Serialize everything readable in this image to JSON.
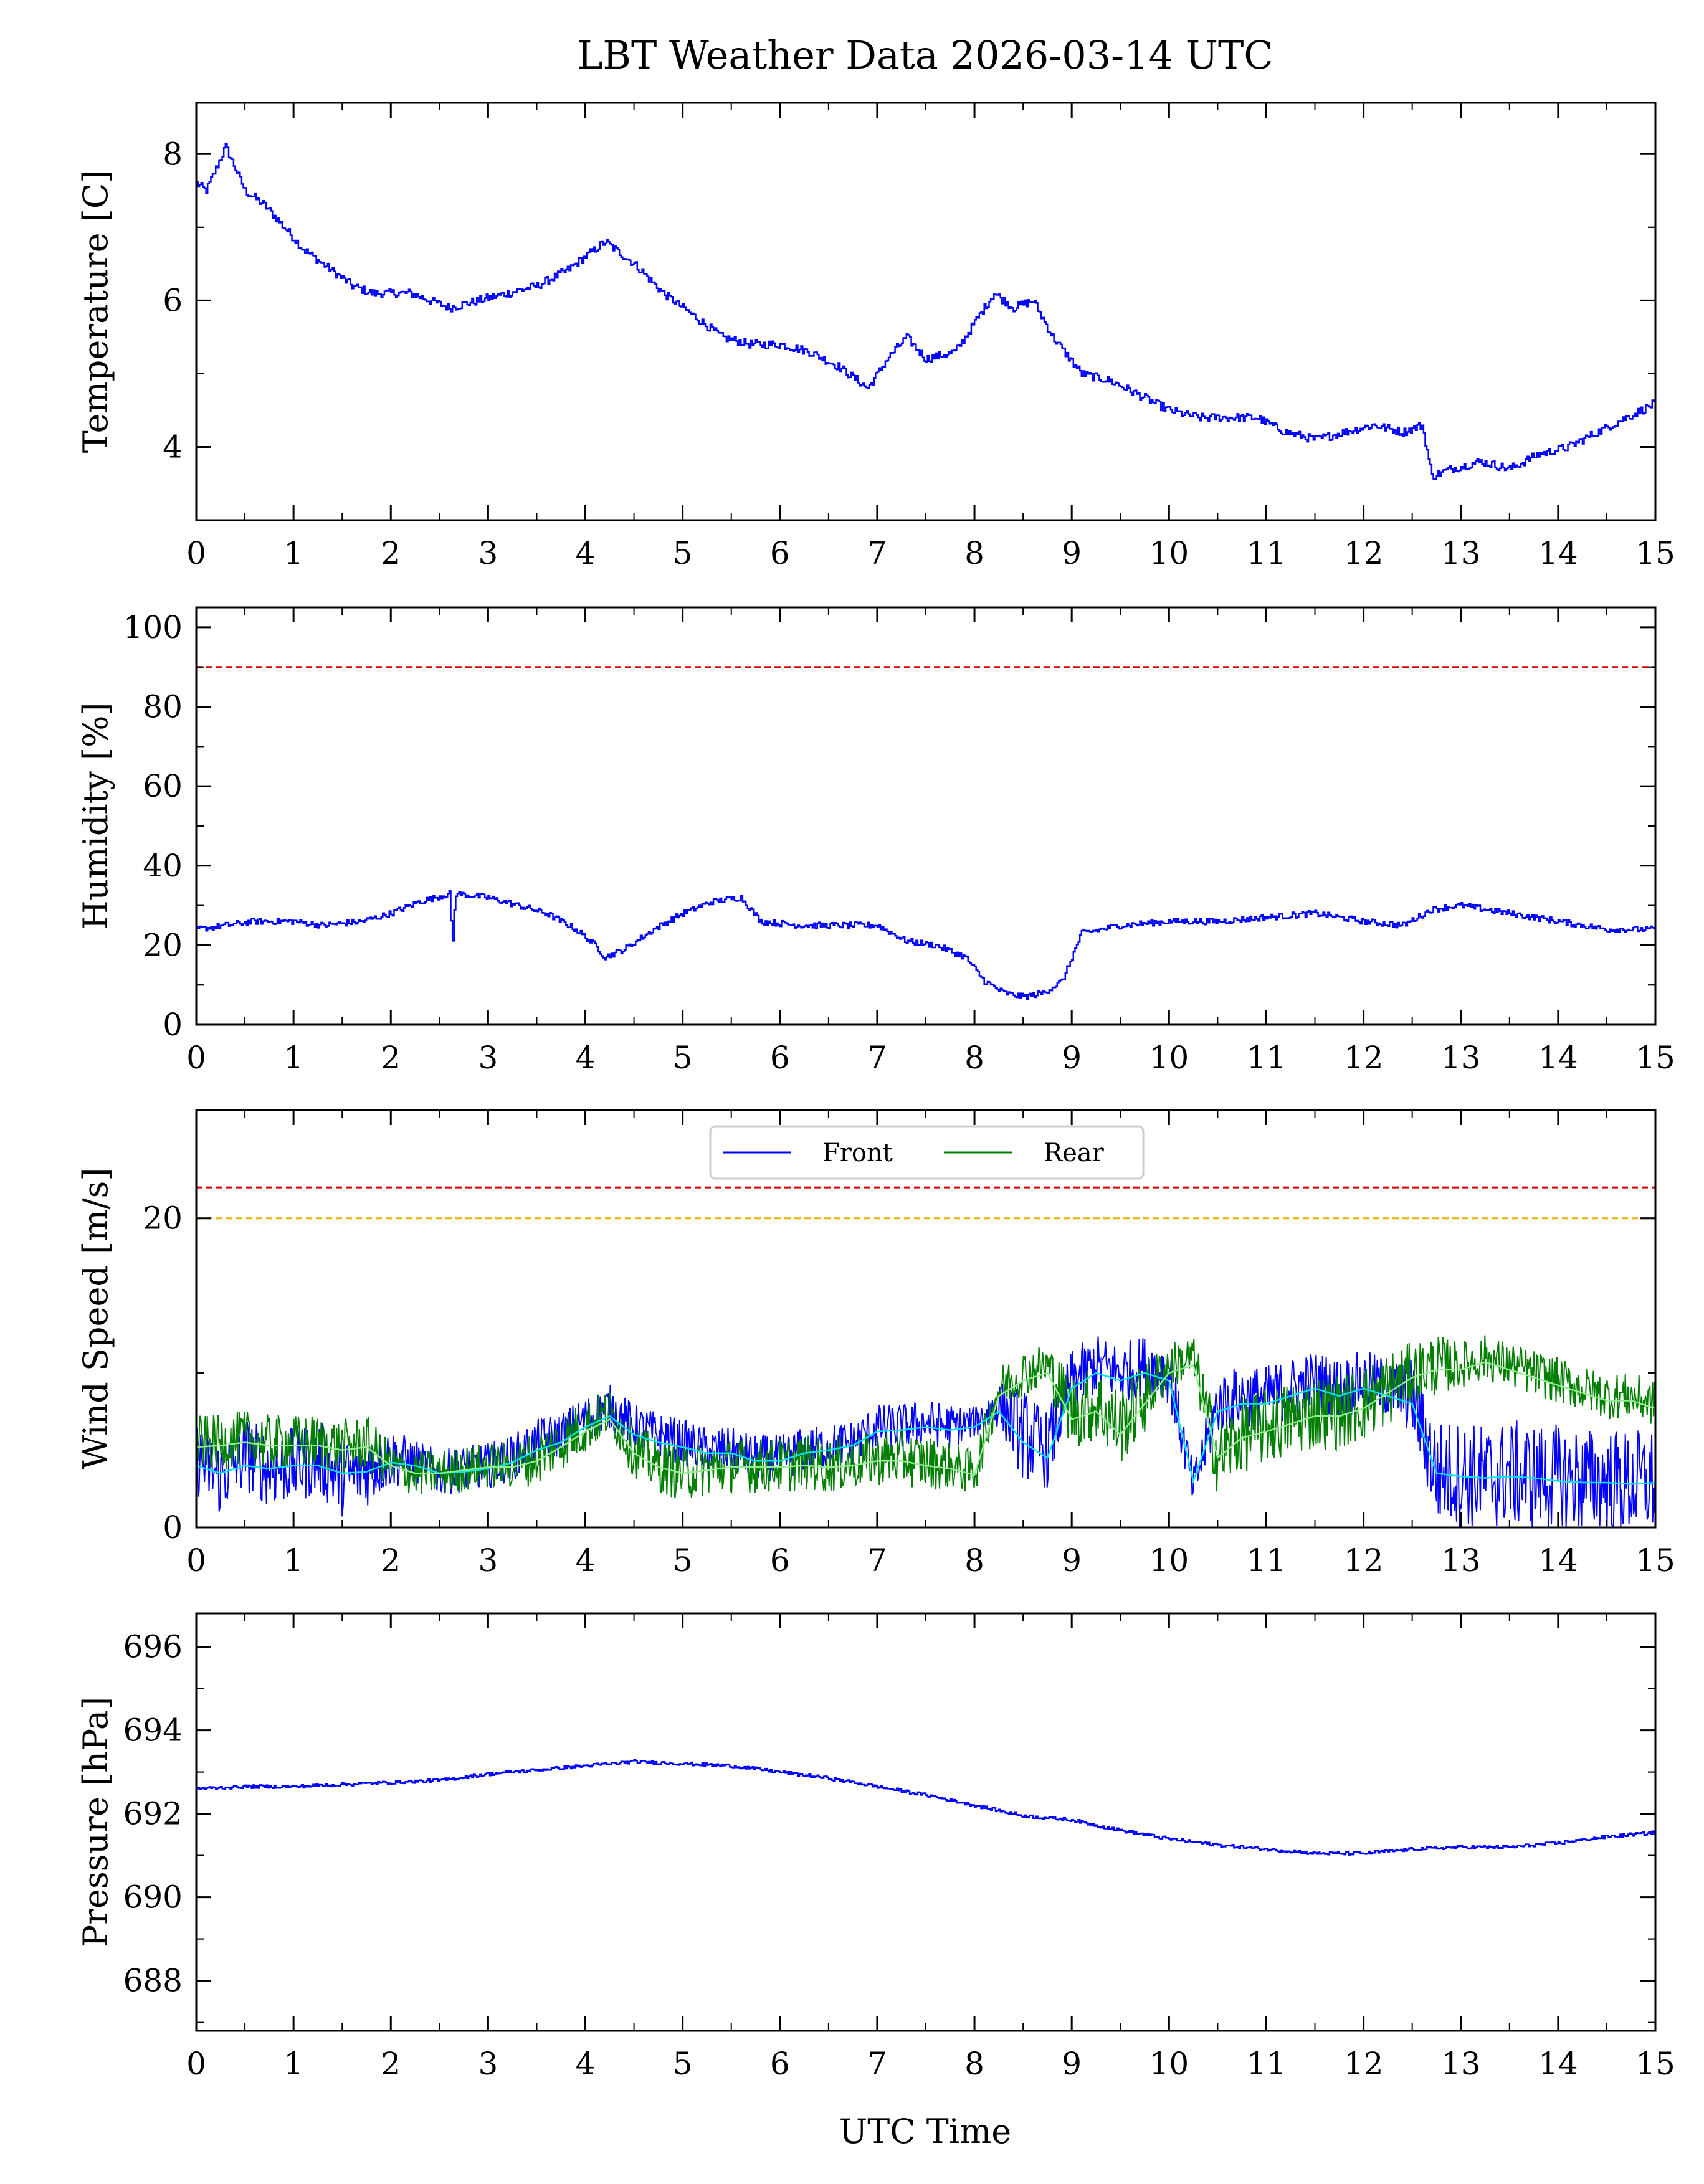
{
  "figure": {
    "title": "LBT Weather Data 2026-03-14 UTC",
    "xlabel": "UTC Time"
  },
  "chart_data": [
    {
      "type": "line",
      "id": "temperature",
      "ylabel": "Temperature [C]",
      "xlim": [
        0,
        15
      ],
      "ylim": [
        3.0,
        8.7
      ],
      "xticks": [
        0,
        1,
        2,
        3,
        4,
        5,
        6,
        7,
        8,
        9,
        10,
        11,
        12,
        13,
        14,
        15
      ],
      "yticks": [
        4,
        6,
        8
      ],
      "series": [
        {
          "name": "Temperature",
          "color": "#0000ff",
          "x": [
            0,
            0.1,
            0.2,
            0.3,
            0.4,
            0.5,
            0.7,
            0.9,
            1.1,
            1.4,
            1.6,
            1.8,
            2.2,
            2.6,
            2.9,
            3.2,
            3.5,
            3.8,
            4.0,
            4.2,
            4.5,
            4.8,
            5.1,
            5.4,
            5.7,
            6.0,
            6.3,
            6.6,
            6.9,
            7.1,
            7.3,
            7.5,
            7.8,
            8.0,
            8.2,
            8.4,
            8.6,
            8.8,
            9.1,
            9.4,
            9.7,
            10.0,
            10.3,
            10.6,
            10.9,
            11.2,
            11.5,
            11.8,
            12.1,
            12.4,
            12.6,
            12.7,
            12.9,
            13.2,
            13.5,
            13.8,
            14.1,
            14.4,
            14.7,
            15.0
          ],
          "y": [
            7.6,
            7.5,
            7.8,
            8.1,
            7.8,
            7.5,
            7.3,
            7.0,
            6.7,
            6.4,
            6.2,
            6.1,
            6.1,
            5.9,
            6.0,
            6.1,
            6.2,
            6.4,
            6.6,
            6.8,
            6.5,
            6.1,
            5.8,
            5.5,
            5.4,
            5.4,
            5.3,
            5.1,
            4.8,
            5.2,
            5.5,
            5.2,
            5.3,
            5.7,
            6.1,
            5.9,
            6.0,
            5.5,
            5.0,
            4.9,
            4.7,
            4.5,
            4.4,
            4.4,
            4.4,
            4.2,
            4.1,
            4.2,
            4.3,
            4.2,
            4.3,
            3.6,
            3.7,
            3.8,
            3.7,
            3.9,
            4.0,
            4.2,
            4.4,
            4.6
          ]
        }
      ]
    },
    {
      "type": "line",
      "id": "humidity",
      "ylabel": "Humidity [%]",
      "xlim": [
        0,
        15
      ],
      "ylim": [
        0,
        105
      ],
      "xticks": [
        0,
        1,
        2,
        3,
        4,
        5,
        6,
        7,
        8,
        9,
        10,
        11,
        12,
        13,
        14,
        15
      ],
      "yticks": [
        0,
        20,
        40,
        60,
        80,
        100
      ],
      "thresholds": [
        {
          "value": 90,
          "color": "#dd0000"
        }
      ],
      "series": [
        {
          "name": "Humidity",
          "color": "#0000ff",
          "x": [
            0,
            0.3,
            0.6,
            1.0,
            1.3,
            1.7,
            2.0,
            2.3,
            2.6,
            2.63,
            2.66,
            3.0,
            3.3,
            3.6,
            3.9,
            4.1,
            4.2,
            4.4,
            4.7,
            5.0,
            5.3,
            5.6,
            5.8,
            6.2,
            6.6,
            7.0,
            7.3,
            7.6,
            7.9,
            8.1,
            8.3,
            8.5,
            8.7,
            8.9,
            9.1,
            9.5,
            10.0,
            10.5,
            11.0,
            11.5,
            12.0,
            12.4,
            12.7,
            13.0,
            13.5,
            14.0,
            14.5,
            15.0
          ],
          "y": [
            24,
            25,
            26,
            26,
            25,
            26,
            28,
            31,
            33,
            20,
            33,
            32,
            30,
            28,
            24,
            20,
            17,
            19,
            24,
            28,
            31,
            32,
            26,
            25,
            25,
            25,
            21,
            20,
            17,
            11,
            8,
            7,
            8,
            11,
            23,
            25,
            26,
            26,
            27,
            28,
            26,
            25,
            29,
            30,
            28,
            26,
            24,
            24
          ]
        }
      ]
    },
    {
      "type": "line",
      "id": "wind",
      "ylabel": "Wind Speed [m/s]",
      "xlim": [
        0,
        15
      ],
      "ylim": [
        0,
        27
      ],
      "xticks": [
        0,
        1,
        2,
        3,
        4,
        5,
        6,
        7,
        8,
        9,
        10,
        11,
        12,
        13,
        14,
        15
      ],
      "yticks": [
        0,
        20
      ],
      "thresholds": [
        {
          "value": 22,
          "color": "#dd0000"
        },
        {
          "value": 20,
          "color": "#e8b000"
        }
      ],
      "legend": {
        "entries": [
          "Front",
          "Rear"
        ],
        "placement": "top-center"
      },
      "x": [
        0,
        0.25,
        0.5,
        0.75,
        1.0,
        1.25,
        1.5,
        1.75,
        2.0,
        2.25,
        2.5,
        2.75,
        3.0,
        3.25,
        3.5,
        3.75,
        4.0,
        4.25,
        4.5,
        4.75,
        5.0,
        5.25,
        5.5,
        5.75,
        6.0,
        6.25,
        6.5,
        6.75,
        7.0,
        7.25,
        7.5,
        7.75,
        8.0,
        8.25,
        8.5,
        8.75,
        9.0,
        9.25,
        9.5,
        9.75,
        10.0,
        10.25,
        10.5,
        10.75,
        11.0,
        11.25,
        11.5,
        11.75,
        12.0,
        12.25,
        12.5,
        12.75,
        13.0,
        13.25,
        13.5,
        13.75,
        14.0,
        14.25,
        14.5,
        14.75,
        15.0
      ],
      "series": [
        {
          "name": "Front",
          "color": "#0000ff",
          "values": [
            4.5,
            3.2,
            4.8,
            3.8,
            4.0,
            4.5,
            3.2,
            3.8,
            4.5,
            4.2,
            3.5,
            3.8,
            4.0,
            4.5,
            5.5,
            6.0,
            7.0,
            7.8,
            6.5,
            6.0,
            5.5,
            5.0,
            5.0,
            4.5,
            4.5,
            5.0,
            5.2,
            5.5,
            6.5,
            6.5,
            6.8,
            6.5,
            6.8,
            8.0,
            6.0,
            5.0,
            9.5,
            10.5,
            10.0,
            10.5,
            10.0,
            2.5,
            8.0,
            8.5,
            8.5,
            9.0,
            9.5,
            9.0,
            9.5,
            9.0,
            8.5,
            3.5,
            3.5,
            3.2,
            3.5,
            3.3,
            3.2,
            3.0,
            3.0,
            2.8,
            3.0
          ],
          "spread": [
            2.5,
            2.5,
            2.5,
            2.5,
            2.5,
            2.5,
            2.5,
            2.5,
            2.0,
            1.5,
            1.5,
            1.5,
            1.5,
            1.5,
            1.5,
            1.5,
            1.5,
            1.5,
            1.5,
            1.5,
            1.5,
            1.5,
            1.5,
            1.5,
            1.5,
            1.5,
            1.5,
            1.5,
            1.5,
            1.5,
            1.5,
            1.5,
            1.0,
            1.5,
            3.0,
            2.5,
            2.0,
            2.0,
            2.0,
            2.0,
            2.0,
            1.5,
            2.0,
            2.0,
            2.0,
            2.0,
            2.0,
            2.0,
            2.0,
            2.0,
            2.5,
            3.5,
            3.5,
            3.5,
            3.5,
            3.5,
            3.5,
            3.5,
            3.5,
            3.5,
            3.5
          ]
        },
        {
          "name": "Rear",
          "color": "#007f00",
          "values": [
            5.5,
            5.5,
            5.8,
            5.5,
            5.5,
            5.5,
            5.2,
            5.5,
            4.0,
            3.5,
            3.5,
            3.8,
            4.0,
            4.0,
            4.5,
            5.5,
            6.5,
            7.5,
            5.0,
            4.0,
            3.5,
            3.8,
            4.0,
            4.0,
            4.0,
            4.2,
            4.0,
            4.2,
            4.5,
            4.5,
            4.2,
            4.0,
            3.5,
            9.0,
            10.0,
            10.5,
            7.5,
            8.0,
            6.5,
            8.5,
            10.5,
            11.0,
            4.5,
            6.0,
            6.5,
            7.0,
            7.5,
            7.5,
            8.0,
            9.0,
            10.0,
            10.5,
            10.5,
            11.0,
            10.5,
            10.0,
            9.5,
            9.0,
            8.5,
            8.5,
            8.0
          ],
          "spread": [
            1.8,
            1.8,
            1.8,
            1.8,
            1.8,
            1.8,
            1.8,
            1.8,
            1.5,
            1.5,
            1.5,
            1.5,
            1.5,
            1.5,
            1.8,
            1.8,
            1.8,
            1.5,
            1.8,
            1.8,
            1.8,
            1.8,
            1.8,
            1.8,
            1.8,
            1.8,
            1.8,
            1.8,
            1.8,
            1.8,
            1.8,
            1.5,
            1.5,
            1.5,
            1.5,
            1.5,
            2.5,
            2.5,
            2.5,
            2.5,
            1.5,
            1.5,
            2.5,
            2.5,
            2.5,
            2.5,
            2.5,
            2.5,
            2.5,
            2.5,
            2.0,
            2.0,
            1.5,
            1.5,
            1.5,
            1.5,
            1.5,
            1.5,
            1.5,
            1.5,
            1.5
          ]
        },
        {
          "name": "Front mean",
          "color": "#00e5e5",
          "values": [
            4.0,
            3.5,
            4.0,
            3.8,
            4.0,
            4.0,
            3.5,
            3.6,
            4.2,
            4.0,
            3.5,
            3.6,
            3.8,
            4.2,
            5.0,
            5.5,
            6.5,
            7.2,
            6.0,
            5.5,
            5.2,
            4.8,
            4.8,
            4.3,
            4.3,
            4.8,
            5.0,
            5.3,
            6.2,
            6.3,
            6.5,
            6.3,
            6.5,
            7.5,
            5.5,
            4.5,
            9.0,
            10.0,
            9.5,
            10.0,
            9.5,
            3.0,
            7.5,
            8.0,
            8.0,
            8.5,
            9.0,
            8.5,
            9.0,
            8.5,
            8.0,
            3.5,
            3.3,
            3.2,
            3.3,
            3.2,
            3.0,
            2.9,
            2.9,
            2.8,
            2.9
          ]
        },
        {
          "name": "Rear mean",
          "color": "#90ee90",
          "values": [
            5.2,
            5.3,
            5.5,
            5.3,
            5.3,
            5.3,
            5.0,
            5.2,
            4.0,
            3.5,
            3.5,
            3.7,
            3.9,
            3.9,
            4.3,
            5.2,
            6.2,
            7.0,
            4.8,
            3.9,
            3.5,
            3.7,
            3.9,
            3.9,
            3.9,
            4.0,
            3.9,
            4.0,
            4.3,
            4.3,
            4.0,
            3.8,
            3.4,
            8.5,
            9.5,
            10.0,
            7.0,
            7.5,
            6.0,
            8.0,
            10.0,
            10.5,
            4.5,
            5.8,
            6.2,
            6.7,
            7.2,
            7.2,
            7.7,
            8.7,
            9.7,
            10.2,
            10.2,
            10.7,
            10.2,
            9.7,
            9.2,
            8.7,
            8.2,
            8.2,
            7.7
          ]
        }
      ]
    },
    {
      "type": "line",
      "id": "pressure",
      "ylabel": "Pressure [hPa]",
      "xlim": [
        0,
        15
      ],
      "ylim": [
        686.8,
        696.8
      ],
      "xticks": [
        0,
        1,
        2,
        3,
        4,
        5,
        6,
        7,
        8,
        9,
        10,
        11,
        12,
        13,
        14,
        15
      ],
      "yticks": [
        688,
        690,
        692,
        694,
        696
      ],
      "series": [
        {
          "name": "Pressure",
          "color": "#0000ff",
          "x": [
            0,
            0.5,
            1.0,
            1.5,
            2.0,
            2.5,
            3.0,
            3.5,
            4.0,
            4.5,
            5.0,
            5.5,
            6.0,
            6.5,
            7.0,
            7.5,
            8.0,
            8.5,
            9.0,
            9.5,
            10.0,
            10.5,
            11.0,
            11.5,
            12.0,
            12.5,
            13.0,
            13.5,
            14.0,
            14.5,
            15.0
          ],
          "y": [
            692.6,
            692.65,
            692.65,
            692.7,
            692.75,
            692.8,
            692.95,
            693.05,
            693.15,
            693.25,
            693.2,
            693.15,
            693.0,
            692.85,
            692.65,
            692.45,
            692.2,
            691.95,
            691.85,
            691.6,
            691.4,
            691.25,
            691.15,
            691.05,
            691.05,
            691.15,
            691.2,
            691.2,
            691.3,
            691.45,
            691.55
          ]
        }
      ]
    }
  ]
}
